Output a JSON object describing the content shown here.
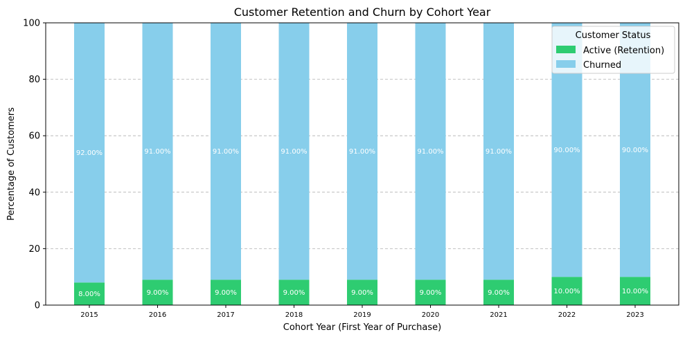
{
  "chart_data": {
    "type": "bar",
    "stacked": true,
    "title": "Customer Retention and Churn by Cohort Year",
    "xlabel": "Cohort Year (First Year of Purchase)",
    "ylabel": "Percentage of Customers",
    "ylim": [
      0,
      100
    ],
    "yticks": [
      "0",
      "20",
      "40",
      "60",
      "80",
      "100"
    ],
    "grid": "horizontal dashed",
    "categories": [
      "2015",
      "2016",
      "2017",
      "2018",
      "2019",
      "2020",
      "2021",
      "2022",
      "2023"
    ],
    "series": [
      {
        "name": "Active (Retention)",
        "color": "#2ecc71",
        "values": [
          8,
          9,
          9,
          9,
          9,
          9,
          9,
          10,
          10
        ],
        "labels": [
          "8.00%",
          "9.00%",
          "9.00%",
          "9.00%",
          "9.00%",
          "9.00%",
          "9.00%",
          "10.00%",
          "10.00%"
        ]
      },
      {
        "name": "Churned",
        "color": "#87ceeb",
        "values": [
          92,
          91,
          91,
          91,
          91,
          91,
          91,
          90,
          90
        ],
        "labels": [
          "92.00%",
          "91.00%",
          "91.00%",
          "91.00%",
          "91.00%",
          "91.00%",
          "91.00%",
          "90.00%",
          "90.00%"
        ]
      }
    ],
    "legend": {
      "title": "Customer Status",
      "placement": "top-right"
    }
  }
}
